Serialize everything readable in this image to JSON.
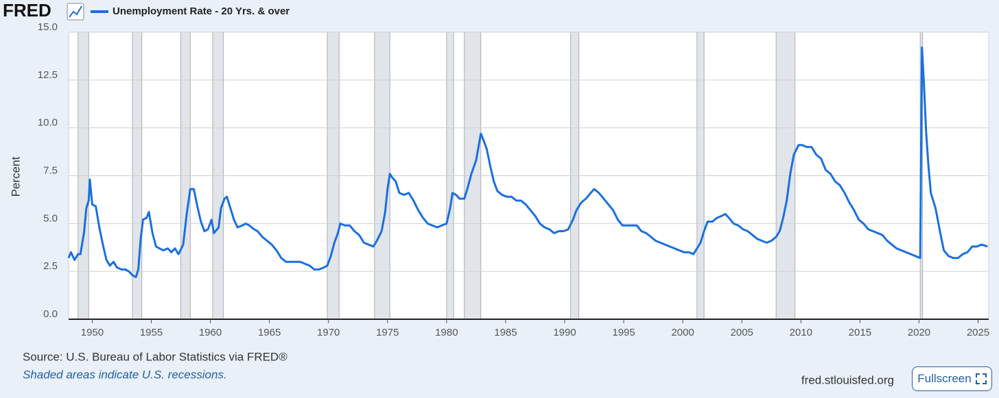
{
  "header": {
    "logo": "FRED"
  },
  "chart_data": {
    "type": "line",
    "ylabel": "Percent",
    "x": [
      1948.0,
      1948.2,
      1948.5,
      1948.8,
      1949.0,
      1949.3,
      1949.5,
      1949.7,
      1949.8,
      1950.0,
      1950.3,
      1950.6,
      1950.9,
      1951.2,
      1951.5,
      1951.8,
      1952.1,
      1952.5,
      1952.8,
      1953.1,
      1953.4,
      1953.7,
      1953.9,
      1954.1,
      1954.3,
      1954.6,
      1954.8,
      1955.1,
      1955.4,
      1955.7,
      1956.0,
      1956.4,
      1956.7,
      1957.0,
      1957.3,
      1957.7,
      1958.0,
      1958.3,
      1958.6,
      1958.9,
      1959.2,
      1959.5,
      1959.8,
      1960.1,
      1960.3,
      1960.7,
      1960.9,
      1961.2,
      1961.4,
      1961.7,
      1962.0,
      1962.3,
      1962.7,
      1963.0,
      1963.3,
      1963.7,
      1964.0,
      1964.4,
      1964.8,
      1965.2,
      1965.6,
      1966.0,
      1966.4,
      1966.8,
      1967.2,
      1967.6,
      1968.0,
      1968.4,
      1968.8,
      1969.2,
      1969.6,
      1969.9,
      1970.2,
      1970.5,
      1970.8,
      1971.0,
      1971.4,
      1971.8,
      1972.2,
      1972.6,
      1973.0,
      1973.4,
      1973.8,
      1974.1,
      1974.5,
      1974.8,
      1975.0,
      1975.2,
      1975.4,
      1975.7,
      1976.0,
      1976.4,
      1976.8,
      1977.2,
      1977.6,
      1978.0,
      1978.4,
      1978.8,
      1979.2,
      1979.6,
      1980.0,
      1980.3,
      1980.5,
      1980.8,
      1981.1,
      1981.5,
      1981.8,
      1982.1,
      1982.5,
      1982.9,
      1983.1,
      1983.4,
      1983.7,
      1984.0,
      1984.3,
      1984.7,
      1985.1,
      1985.5,
      1985.9,
      1986.3,
      1986.7,
      1987.1,
      1987.5,
      1987.9,
      1988.3,
      1988.7,
      1989.1,
      1989.5,
      1989.9,
      1990.3,
      1990.7,
      1991.0,
      1991.4,
      1991.8,
      1992.2,
      1992.5,
      1992.9,
      1993.3,
      1993.7,
      1994.1,
      1994.5,
      1994.9,
      1995.3,
      1995.7,
      1996.1,
      1996.5,
      1996.9,
      1997.3,
      1997.7,
      1998.1,
      1998.5,
      1998.9,
      1999.3,
      1999.7,
      2000.1,
      2000.5,
      2000.9,
      2001.2,
      2001.5,
      2001.8,
      2002.1,
      2002.5,
      2002.9,
      2003.3,
      2003.6,
      2003.9,
      2004.3,
      2004.7,
      2005.1,
      2005.5,
      2005.9,
      2006.3,
      2006.7,
      2007.1,
      2007.5,
      2007.9,
      2008.2,
      2008.5,
      2008.8,
      2009.1,
      2009.4,
      2009.8,
      2010.1,
      2010.5,
      2010.9,
      2011.3,
      2011.7,
      2012.1,
      2012.5,
      2012.9,
      2013.3,
      2013.7,
      2014.1,
      2014.5,
      2014.9,
      2015.3,
      2015.7,
      2016.1,
      2016.5,
      2016.9,
      2017.3,
      2017.7,
      2018.1,
      2018.5,
      2018.9,
      2019.3,
      2019.7,
      2020.1,
      2020.25,
      2020.4,
      2020.6,
      2020.8,
      2021.0,
      2021.4,
      2021.8,
      2022.1,
      2022.5,
      2022.9,
      2023.3,
      2023.7,
      2024.1,
      2024.5,
      2024.9,
      2025.3,
      2025.8
    ],
    "series": [
      {
        "name": "Unemployment Rate - 20 Yrs. & over",
        "color": "#1a6fdf",
        "values": [
          3.2,
          3.5,
          3.1,
          3.4,
          3.4,
          4.5,
          5.8,
          6.2,
          7.3,
          6.0,
          5.9,
          4.8,
          3.9,
          3.1,
          2.8,
          3.0,
          2.7,
          2.6,
          2.6,
          2.5,
          2.3,
          2.2,
          2.6,
          4.2,
          5.2,
          5.3,
          5.6,
          4.5,
          3.8,
          3.7,
          3.6,
          3.7,
          3.5,
          3.7,
          3.4,
          3.9,
          5.5,
          6.8,
          6.8,
          5.9,
          5.1,
          4.6,
          4.7,
          5.2,
          4.5,
          4.8,
          5.8,
          6.3,
          6.4,
          5.8,
          5.2,
          4.8,
          4.9,
          5.0,
          4.9,
          4.7,
          4.6,
          4.3,
          4.1,
          3.9,
          3.6,
          3.2,
          3.0,
          3.0,
          3.0,
          3.0,
          2.9,
          2.8,
          2.6,
          2.6,
          2.7,
          2.8,
          3.3,
          4.0,
          4.5,
          5.0,
          4.9,
          4.9,
          4.6,
          4.4,
          4.0,
          3.9,
          3.8,
          4.1,
          4.6,
          5.6,
          6.8,
          7.6,
          7.4,
          7.2,
          6.6,
          6.5,
          6.6,
          6.2,
          5.7,
          5.3,
          5.0,
          4.9,
          4.8,
          4.9,
          5.0,
          5.8,
          6.6,
          6.5,
          6.3,
          6.3,
          6.9,
          7.6,
          8.3,
          9.7,
          9.4,
          8.9,
          8.0,
          7.2,
          6.7,
          6.5,
          6.4,
          6.4,
          6.2,
          6.2,
          6.0,
          5.7,
          5.4,
          5.0,
          4.8,
          4.7,
          4.5,
          4.6,
          4.6,
          4.7,
          5.2,
          5.7,
          6.1,
          6.3,
          6.6,
          6.8,
          6.6,
          6.3,
          6.0,
          5.7,
          5.2,
          4.9,
          4.9,
          4.9,
          4.9,
          4.6,
          4.5,
          4.3,
          4.1,
          4.0,
          3.9,
          3.8,
          3.7,
          3.6,
          3.5,
          3.5,
          3.4,
          3.7,
          4.0,
          4.6,
          5.1,
          5.1,
          5.3,
          5.4,
          5.5,
          5.3,
          5.0,
          4.9,
          4.7,
          4.6,
          4.4,
          4.2,
          4.1,
          4.0,
          4.1,
          4.3,
          4.6,
          5.3,
          6.2,
          7.6,
          8.6,
          9.1,
          9.1,
          9.0,
          9.0,
          8.6,
          8.4,
          7.8,
          7.6,
          7.2,
          7.0,
          6.6,
          6.1,
          5.7,
          5.2,
          5.0,
          4.7,
          4.6,
          4.5,
          4.4,
          4.1,
          3.9,
          3.7,
          3.6,
          3.5,
          3.4,
          3.3,
          3.2,
          14.2,
          12.5,
          9.8,
          8.0,
          6.6,
          5.8,
          4.5,
          3.6,
          3.3,
          3.2,
          3.2,
          3.4,
          3.5,
          3.8,
          3.8,
          3.9,
          3.8
        ]
      }
    ],
    "recessions": [
      [
        1948.8,
        1949.7
      ],
      [
        1953.4,
        1954.2
      ],
      [
        1957.5,
        1958.3
      ],
      [
        1960.2,
        1961.1
      ],
      [
        1969.9,
        1970.9
      ],
      [
        1973.9,
        1975.2
      ],
      [
        1980.0,
        1980.6
      ],
      [
        1981.5,
        1982.9
      ],
      [
        1990.5,
        1991.2
      ],
      [
        2001.2,
        2001.8
      ],
      [
        2007.9,
        2009.5
      ],
      [
        2020.1,
        2020.3
      ]
    ],
    "xlim": [
      1948.0,
      2025.9
    ],
    "xticks": [
      1950,
      1955,
      1960,
      1965,
      1970,
      1975,
      1980,
      1985,
      1990,
      1995,
      2000,
      2005,
      2010,
      2015,
      2020,
      2025
    ],
    "ylim": [
      0,
      15
    ],
    "yticks": [
      {
        "value": 0,
        "label": "0.0"
      },
      {
        "value": 2.5,
        "label": "2.5"
      },
      {
        "value": 5,
        "label": "5.0"
      },
      {
        "value": 7.5,
        "label": "7.5"
      },
      {
        "value": 10,
        "label": "10.0"
      },
      {
        "value": 12.5,
        "label": "12.5"
      },
      {
        "value": 15,
        "label": "15.0"
      }
    ],
    "grid": true
  },
  "footer": {
    "source": "Source: U.S. Bureau of Labor Statistics via FRED®",
    "note": "Shaded areas indicate U.S. recessions.",
    "site": "fred.stlouisfed.org",
    "button": "Fullscreen"
  }
}
